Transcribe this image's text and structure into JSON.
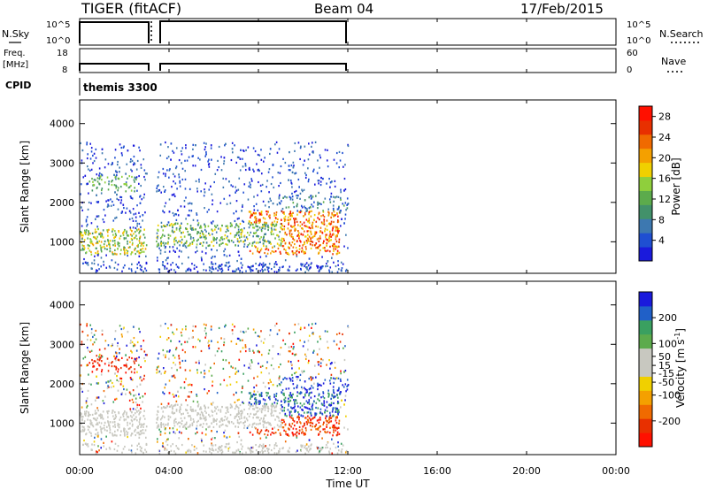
{
  "header": {
    "radar": "TIGER (fitACF)",
    "beam": "Beam 04",
    "date": "17/Feb/2015"
  },
  "panels": {
    "nsky": {
      "label": "N.Sky",
      "left_ticks": [
        "10^5",
        "10^0"
      ],
      "right_ticks": [
        "10^5",
        "10^0"
      ],
      "right_label": "N.Search"
    },
    "freq": {
      "label_line1": "Freq.",
      "label_line2": "[MHz]",
      "left_ticks": [
        "18",
        "8"
      ],
      "right_ticks": [
        "60",
        "0"
      ],
      "right_label": "Nave"
    },
    "cpid": {
      "label": "CPID",
      "value": "themis 3300"
    }
  },
  "colors": {
    "power": [
      "#1a1adc",
      "#1f4fd2",
      "#3d78b0",
      "#42916a",
      "#5cab4c",
      "#8fcf3c",
      "#f0d000",
      "#f4a000",
      "#f06a00",
      "#e83000",
      "#ff1000"
    ],
    "velocity": [
      "#ff1000",
      "#e83000",
      "#f06a00",
      "#f4a000",
      "#f0d000",
      "#c8c8c0",
      "#c8c8c0",
      "#5cab4c",
      "#3aa060",
      "#2060c8",
      "#1a1adc"
    ]
  },
  "chart_data": [
    {
      "type": "heatmap",
      "title": "",
      "xlabel": "Time UT",
      "ylabel": "Slant Range [km]",
      "xlim": [
        "00:00",
        "24:00"
      ],
      "ylim": [
        200,
        4600
      ],
      "x_ticks": [
        "00:00",
        "04:00",
        "08:00",
        "12:00",
        "16:00",
        "20:00",
        "00:00"
      ],
      "y_ticks": [
        1000,
        2000,
        3000,
        4000
      ],
      "colorbar": {
        "label": "Power [dB]",
        "ticks": [
          4,
          8,
          12,
          16,
          20,
          24,
          28
        ],
        "range": [
          0,
          30
        ]
      },
      "data_gap": [
        "03:00",
        "03:25"
      ],
      "data_end": "12:00",
      "regions": [
        {
          "t": [
            0.0,
            3.0
          ],
          "r": [
            700,
            1350
          ],
          "level": "high"
        },
        {
          "t": [
            3.4,
            9.0
          ],
          "r": [
            900,
            1500
          ],
          "level": "high"
        },
        {
          "t": [
            7.5,
            11.5
          ],
          "r": [
            700,
            1800
          ],
          "level": "strong"
        },
        {
          "t": [
            0.4,
            2.5
          ],
          "r": [
            2300,
            2700
          ],
          "level": "medium"
        },
        {
          "t": [
            0.0,
            12.0
          ],
          "r": [
            300,
            3500
          ],
          "level": "sparse"
        }
      ]
    },
    {
      "type": "heatmap",
      "title": "",
      "xlabel": "Time UT",
      "ylabel": "Slant Range [km]",
      "xlim": [
        "00:00",
        "24:00"
      ],
      "ylim": [
        200,
        4600
      ],
      "x_ticks": [
        "00:00",
        "04:00",
        "08:00",
        "12:00",
        "16:00",
        "20:00",
        "00:00"
      ],
      "y_ticks": [
        1000,
        2000,
        3000,
        4000
      ],
      "colorbar": {
        "label": "Velocity [m s^-1]",
        "ticks": [
          200,
          100,
          50,
          15,
          -15,
          -50,
          -100,
          -200
        ],
        "range": [
          -300,
          300
        ]
      },
      "data_gap": [
        "03:00",
        "03:25"
      ],
      "data_end": "12:00",
      "regions": [
        {
          "t": [
            0.0,
            9.0
          ],
          "r": [
            300,
            1700
          ],
          "velocity": "ground scatter (~0)"
        },
        {
          "t": [
            0.4,
            2.5
          ],
          "r": [
            2200,
            2700
          ],
          "velocity": "negative (~-200)"
        },
        {
          "t": [
            9.0,
            12.0
          ],
          "r": [
            1000,
            2200
          ],
          "velocity": "positive (~200)"
        },
        {
          "t": [
            8.0,
            12.0
          ],
          "r": [
            700,
            1200
          ],
          "velocity": "negative (~-100)"
        }
      ]
    }
  ]
}
